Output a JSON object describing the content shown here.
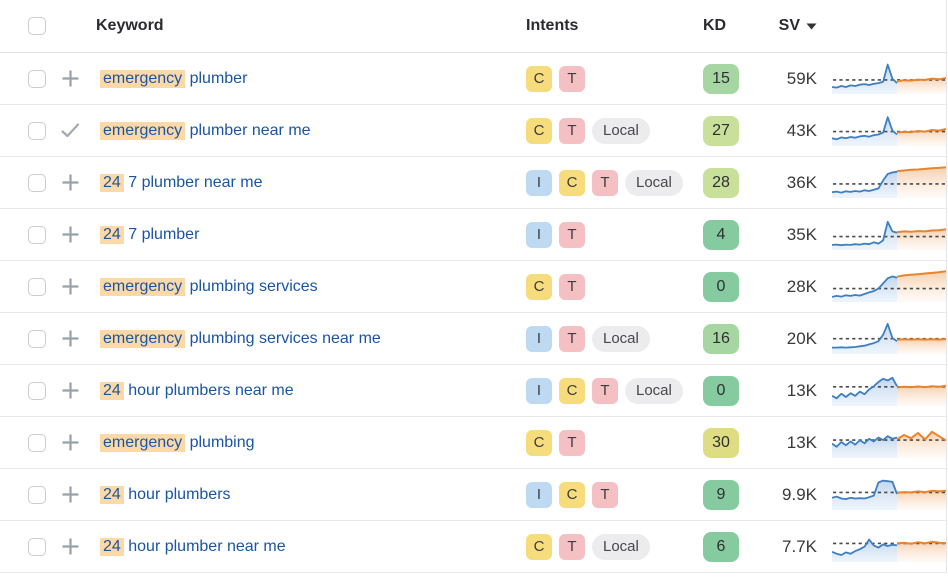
{
  "palette": {
    "link_blue": "#1a55a5",
    "keyword_highlight": "#fcd9a6",
    "spark_blue": "#3e7fc1",
    "spark_orange": "#e8842e",
    "dash_line": "#4a4a4a",
    "kd_levels": {
      "green": "#86cba0",
      "light_green": "#a6d7a3",
      "yellow_green": "#c9e09a",
      "yellow": "#dfdd83"
    },
    "intent_colors": {
      "I": "#bed9f2",
      "C": "#f6dc7b",
      "T": "#f5c0c3",
      "Local": "#ececee"
    }
  },
  "header": {
    "keyword": "Keyword",
    "intents": "Intents",
    "kd": "KD",
    "sv": "SV",
    "sv_sort": "desc"
  },
  "rows": [
    {
      "action": "add",
      "keyword_highlight": "emergency",
      "keyword_rest": " plumber",
      "intents": [
        "C",
        "T"
      ],
      "kd": "15",
      "kd_level": "light_green",
      "sv": "59K",
      "trend": {
        "dash": 56,
        "blue": [
          78,
          80,
          75,
          78,
          73,
          75,
          71,
          69,
          72,
          68,
          66,
          62,
          8,
          52,
          66
        ],
        "orange": [
          60,
          57,
          58,
          55,
          56,
          52,
          54,
          50
        ]
      }
    },
    {
      "action": "check",
      "keyword_highlight": "emergency",
      "keyword_rest": " plumber near me",
      "intents": [
        "C",
        "T",
        "Local"
      ],
      "kd": "27",
      "kd_level": "yellow_green",
      "sv": "43K",
      "trend": {
        "dash": 55,
        "blue": [
          76,
          79,
          73,
          76,
          72,
          74,
          70,
          68,
          71,
          66,
          64,
          58,
          10,
          52,
          64
        ],
        "orange": [
          58,
          56,
          57,
          53,
          55,
          50,
          52,
          47
        ]
      }
    },
    {
      "action": "add",
      "keyword_highlight": "24",
      "keyword_rest": " 7 plumber near me",
      "intents": [
        "I",
        "C",
        "T",
        "Local"
      ],
      "kd": "28",
      "kd_level": "yellow_green",
      "sv": "36K",
      "trend": {
        "dash": 56,
        "blue": [
          82,
          80,
          83,
          79,
          81,
          78,
          80,
          76,
          78,
          74,
          70,
          45,
          25,
          20,
          18
        ],
        "orange": [
          16,
          14,
          12,
          11,
          9,
          7,
          6,
          4
        ]
      }
    },
    {
      "action": "add",
      "keyword_highlight": "24",
      "keyword_rest": " 7 plumber",
      "intents": [
        "I",
        "T"
      ],
      "kd": "4",
      "kd_level": "green",
      "sv": "35K",
      "trend": {
        "dash": 58,
        "blue": [
          84,
          83,
          85,
          83,
          84,
          82,
          83,
          80,
          82,
          76,
          80,
          70,
          12,
          42,
          46
        ],
        "orange": [
          44,
          42,
          43,
          41,
          42,
          39,
          38,
          35
        ]
      }
    },
    {
      "action": "add",
      "keyword_highlight": "emergency",
      "keyword_rest": " plumbing services",
      "intents": [
        "C",
        "T"
      ],
      "kd": "0",
      "kd_level": "green",
      "sv": "28K",
      "trend": {
        "dash": 58,
        "blue": [
          84,
          81,
          83,
          79,
          81,
          78,
          80,
          75,
          70,
          66,
          58,
          42,
          26,
          20,
          24
        ],
        "orange": [
          21,
          17,
          15,
          13,
          11,
          9,
          7,
          4
        ]
      }
    },
    {
      "action": "add",
      "keyword_highlight": "emergency",
      "keyword_rest": " plumbing services near me",
      "intents": [
        "I",
        "T",
        "Local"
      ],
      "kd": "16",
      "kd_level": "light_green",
      "sv": "20K",
      "trend": {
        "dash": 52,
        "blue": [
          80,
          80,
          79,
          80,
          79,
          78,
          76,
          74,
          70,
          66,
          60,
          40,
          6,
          50,
          60
        ],
        "orange": [
          55,
          54,
          55,
          54,
          55,
          54,
          55,
          53
        ]
      }
    },
    {
      "action": "add",
      "keyword_highlight": "24",
      "keyword_rest": " hour plumbers near me",
      "intents": [
        "I",
        "C",
        "T",
        "Local"
      ],
      "kd": "0",
      "kd_level": "green",
      "sv": "13K",
      "trend": {
        "dash": 40,
        "blue": [
          68,
          76,
          62,
          72,
          60,
          68,
          55,
          63,
          48,
          38,
          25,
          15,
          20,
          12,
          38
        ],
        "orange": [
          42,
          40,
          41,
          39,
          41,
          38,
          40,
          37
        ]
      }
    },
    {
      "action": "add",
      "keyword_highlight": "emergency",
      "keyword_rest": " plumbing",
      "intents": [
        "C",
        "T"
      ],
      "kd": "30",
      "kd_level": "yellow",
      "sv": "13K",
      "trend": {
        "dash": 44,
        "blue": [
          55,
          65,
          50,
          60,
          48,
          58,
          44,
          54,
          40,
          48,
          36,
          44,
          32,
          40,
          36
        ],
        "orange": [
          42,
          28,
          38,
          22,
          42,
          18,
          32,
          45
        ]
      }
    },
    {
      "action": "add",
      "keyword_highlight": "24",
      "keyword_rest": " hour plumbers",
      "intents": [
        "I",
        "C",
        "T"
      ],
      "kd": "9",
      "kd_level": "green",
      "sv": "9.9K",
      "trend": {
        "dash": 45,
        "blue": [
          62,
          58,
          64,
          66,
          62,
          64,
          63,
          64,
          60,
          55,
          14,
          8,
          10,
          12,
          50
        ],
        "orange": [
          46,
          44,
          45,
          42,
          44,
          40,
          42,
          40
        ]
      }
    },
    {
      "action": "add",
      "keyword_highlight": "24",
      "keyword_rest": " hour plumber near me",
      "intents": [
        "C",
        "T",
        "Local"
      ],
      "kd": "6",
      "kd_level": "green",
      "sv": "7.7K",
      "trend": {
        "dash": 42,
        "blue": [
          68,
          74,
          78,
          70,
          74,
          66,
          60,
          52,
          30,
          48,
          55,
          45,
          50,
          46,
          48
        ],
        "orange": [
          42,
          40,
          43,
          38,
          42,
          37,
          40,
          41
        ]
      }
    }
  ]
}
